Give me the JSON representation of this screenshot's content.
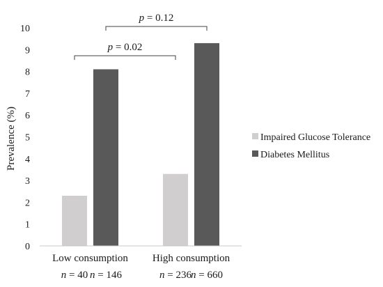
{
  "chart_data": {
    "type": "bar",
    "title": "",
    "xlabel": "",
    "ylabel": "Prevalence (%)",
    "ylim": [
      0,
      10
    ],
    "yticks": [
      0,
      1,
      2,
      3,
      4,
      5,
      6,
      7,
      8,
      9,
      10
    ],
    "grid": false,
    "legend_position": "right",
    "categories": [
      "Low consumption",
      "High consumption"
    ],
    "series": [
      {
        "name": "Impaired Glucose Tolerance",
        "color": "#d0cece",
        "values": [
          2.3,
          3.3
        ],
        "n": [
          "n = 40",
          "n = 236"
        ]
      },
      {
        "name": "Diabetes Mellitus",
        "color": "#595959",
        "values": [
          8.1,
          9.3
        ],
        "n": [
          "n = 146",
          "n = 660"
        ]
      }
    ],
    "annotations": [
      {
        "label": "p = 0.02",
        "from": [
          0,
          0
        ],
        "to": [
          1,
          0
        ]
      },
      {
        "label": "p = 0.12",
        "from": [
          0,
          1
        ],
        "to": [
          1,
          1
        ]
      }
    ]
  }
}
